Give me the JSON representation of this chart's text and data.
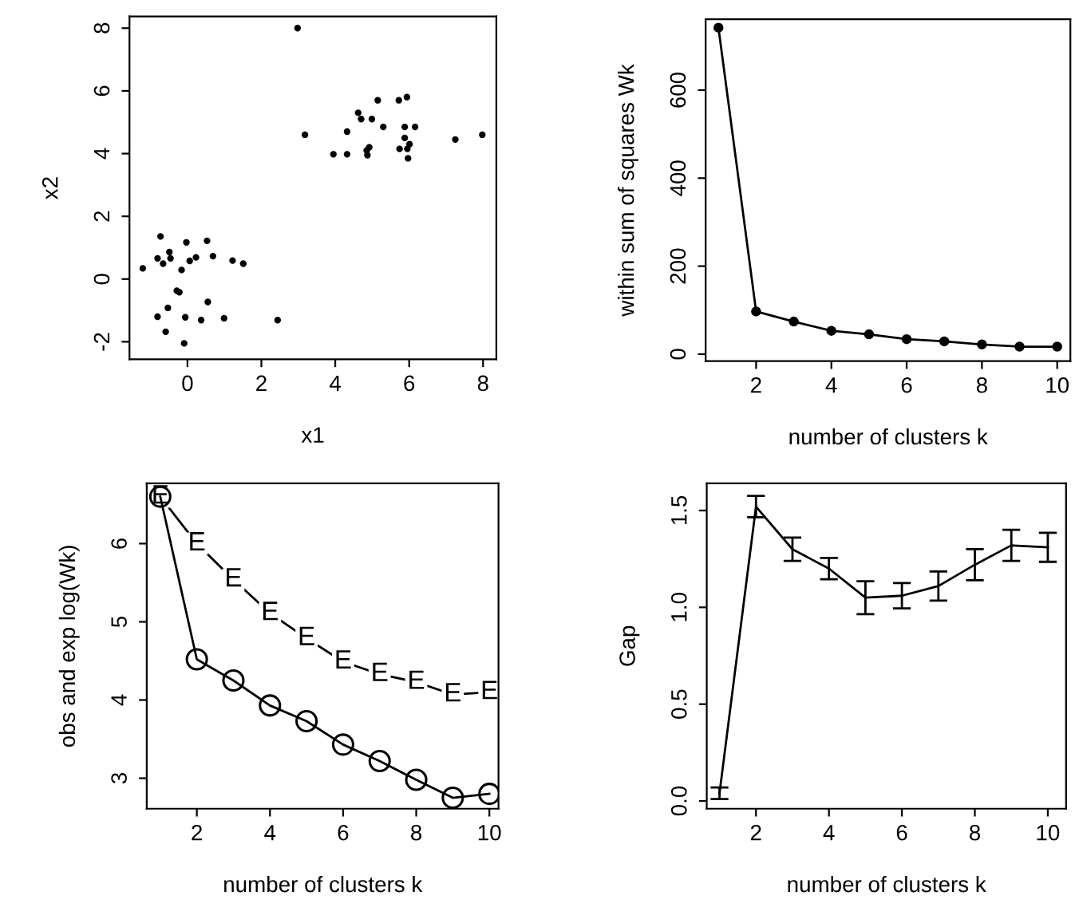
{
  "chart_data": [
    {
      "type": "scatter",
      "xlabel": "x1",
      "ylabel": "x2",
      "marker": "circle",
      "x": [
        2.98,
        3.18,
        3.95,
        4.32,
        4.32,
        4.62,
        4.7,
        4.99,
        5.15,
        5.3,
        4.92,
        4.85,
        4.87,
        5.72,
        5.94,
        5.88,
        6.16,
        5.88,
        5.74,
        5.95,
        6.01,
        5.97,
        7.25,
        7.98,
        -1.21,
        -0.73,
        -0.81,
        -0.66,
        -0.49,
        -0.46,
        -0.16,
        -0.03,
        0.06,
        0.23,
        0.53,
        0.69,
        1.22,
        1.51,
        -0.29,
        -0.22,
        -0.53,
        -0.81,
        -0.06,
        0.37,
        0.99,
        0.55,
        -0.59,
        -0.09,
        2.44
      ],
      "values": [
        8.0,
        4.6,
        3.98,
        3.98,
        4.7,
        5.3,
        5.1,
        5.1,
        5.7,
        4.85,
        4.2,
        4.1,
        3.95,
        5.7,
        5.8,
        4.85,
        4.85,
        4.5,
        4.15,
        4.15,
        4.3,
        3.85,
        4.45,
        4.6,
        0.34,
        1.36,
        0.66,
        0.49,
        0.86,
        0.66,
        0.29,
        1.17,
        0.58,
        0.69,
        1.22,
        0.73,
        0.59,
        0.49,
        -0.37,
        -0.42,
        -0.92,
        -1.2,
        -1.22,
        -1.31,
        -1.25,
        -0.73,
        -1.68,
        -2.05,
        -1.31
      ],
      "color": "#000000",
      "xlim": [
        -1.57,
        8.36
      ],
      "ylim": [
        -2.56,
        8.37
      ],
      "xticks": [
        0,
        2,
        4,
        6,
        8
      ],
      "yticks": [
        -2,
        0,
        2,
        4,
        6,
        8
      ]
    },
    {
      "type": "line",
      "xlabel": "number of clusters k",
      "ylabel": "within sum of squares Wk",
      "marker": "circle",
      "x": [
        1,
        2,
        3,
        4,
        5,
        6,
        7,
        8,
        9,
        10
      ],
      "values": [
        742,
        97,
        74,
        53,
        45,
        34,
        29,
        22,
        17,
        17
      ],
      "color": "#000000",
      "xlim": [
        0.66,
        10.35
      ],
      "ylim": [
        -16,
        761
      ],
      "xticks": [
        2,
        4,
        6,
        8,
        10
      ],
      "yticks": [
        0,
        200,
        400,
        600
      ]
    },
    {
      "type": "line",
      "xlabel": "number of clusters k",
      "ylabel": "obs and exp log(Wk)",
      "x": [
        1,
        2,
        3,
        4,
        5,
        6,
        7,
        8,
        9,
        10
      ],
      "series": [
        {
          "values": [
            6.6,
            4.52,
            4.25,
            3.93,
            3.73,
            3.43,
            3.22,
            2.98,
            2.75,
            2.8
          ],
          "color": "#000000",
          "marker": "circle"
        },
        {
          "values": [
            6.6,
            6.0,
            5.54,
            5.11,
            4.79,
            4.49,
            4.33,
            4.23,
            4.07,
            4.1
          ],
          "color": "#000000",
          "marker": "square"
        }
      ],
      "annotations": [
        {
          "text": "E",
          "x": 1,
          "y": 6.6
        },
        {
          "text": "E",
          "x": 2,
          "y": 6.0
        },
        {
          "text": "E",
          "x": 3,
          "y": 5.54
        },
        {
          "text": "E",
          "x": 4,
          "y": 5.11
        },
        {
          "text": "E",
          "x": 5,
          "y": 4.79
        },
        {
          "text": "E",
          "x": 6,
          "y": 4.49
        },
        {
          "text": "E",
          "x": 7,
          "y": 4.33
        },
        {
          "text": "E",
          "x": 8,
          "y": 4.23
        },
        {
          "text": "E",
          "x": 9,
          "y": 4.07
        },
        {
          "text": "E",
          "x": 10,
          "y": 4.1
        }
      ],
      "xlim": [
        0.63,
        10.25
      ],
      "ylim": [
        2.61,
        6.77
      ],
      "xticks": [
        2,
        4,
        6,
        8,
        10
      ],
      "yticks": [
        3,
        4,
        5,
        6
      ]
    },
    {
      "type": "line",
      "xlabel": "number of clusters k",
      "ylabel": "Gap",
      "x": [
        1,
        2,
        3,
        4,
        5,
        6,
        7,
        8,
        9,
        10
      ],
      "values": [
        0.04,
        1.52,
        1.3,
        1.2,
        1.05,
        1.06,
        1.11,
        1.22,
        1.32,
        1.31
      ],
      "errors": [
        0.03,
        0.055,
        0.06,
        0.055,
        0.085,
        0.065,
        0.075,
        0.08,
        0.08,
        0.075
      ],
      "color": "#000000",
      "xlim": [
        0.65,
        10.5
      ],
      "ylim": [
        -0.04,
        1.64
      ],
      "xticks": [
        2,
        4,
        6,
        8,
        10
      ],
      "yticks": [
        {
          "value": 0,
          "label": "0.0"
        },
        0.5,
        {
          "value": 1,
          "label": "1.0"
        },
        1.5
      ]
    }
  ]
}
